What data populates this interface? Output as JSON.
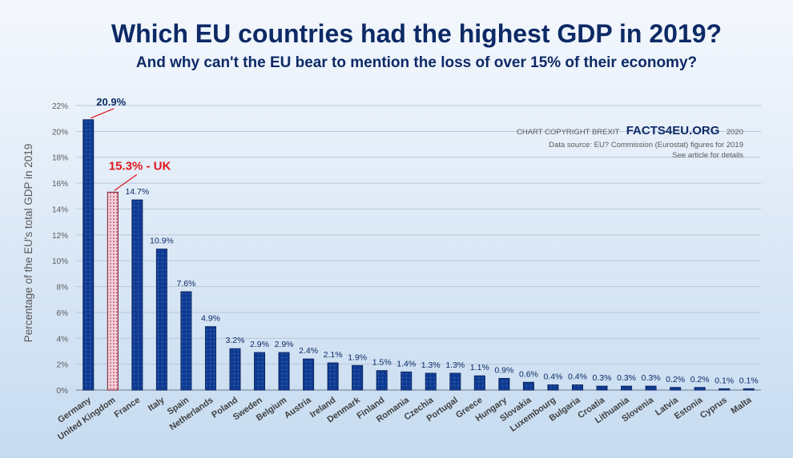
{
  "chart_data": {
    "type": "bar",
    "title": "Which EU countries had the highest GDP in 2019?",
    "subtitle": "And why can't the EU bear to mention the loss of over 15% of their economy?",
    "ylabel": "Percentage of the EU's total GDP in 2019",
    "ylim": [
      0,
      22
    ],
    "yticks": [
      "0%",
      "2%",
      "4%",
      "6%",
      "8%",
      "10%",
      "12%",
      "14%",
      "16%",
      "18%",
      "20%",
      "22%"
    ],
    "grid": true,
    "categories": [
      "Germany",
      "United Kingdom",
      "France",
      "Italy",
      "Spain",
      "Netherlands",
      "Poland",
      "Sweden",
      "Belgium",
      "Austria",
      "Ireland",
      "Denmark",
      "Finland",
      "Romania",
      "Czechia",
      "Portugal",
      "Greece",
      "Hungary",
      "Slovakia",
      "Luxembourg",
      "Bulgaria",
      "Croatia",
      "Lithuania",
      "Slovenia",
      "Latvia",
      "Estonia",
      "Cyprus",
      "Malta"
    ],
    "values": [
      20.9,
      15.3,
      14.7,
      10.9,
      7.6,
      4.9,
      3.2,
      2.9,
      2.9,
      2.4,
      2.1,
      1.9,
      1.5,
      1.4,
      1.3,
      1.3,
      1.1,
      0.9,
      0.6,
      0.4,
      0.4,
      0.3,
      0.3,
      0.3,
      0.2,
      0.2,
      0.1,
      0.1
    ],
    "labels": [
      "20.9%",
      "15.3% - UK",
      "14.7%",
      "10.9%",
      "7.6%",
      "4.9%",
      "3.2%",
      "2.9%",
      "2.9%",
      "2.4%",
      "2.1%",
      "1.9%",
      "1.5%",
      "1.4%",
      "1.3%",
      "1.3%",
      "1.1%",
      "0.9%",
      "0.6%",
      "0.4%",
      "0.4%",
      "0.3%",
      "0.3%",
      "0.3%",
      "0.2%",
      "0.2%",
      "0.1%",
      "0.1%"
    ],
    "highlight": "United Kingdom",
    "colors": {
      "bar": "#0f3a8f",
      "highlight_bar": "#e8b7c4",
      "highlight_label": "#e0161b",
      "label": "#0d2a66"
    }
  },
  "copyright": {
    "prefix": "CHART COPYRIGHT BREXIT",
    "brand": "FACTS4EU.ORG",
    "year": "2020",
    "source": "Data source: EU? Commission (Eurostat) figures for 2019",
    "note": "See article for details"
  }
}
